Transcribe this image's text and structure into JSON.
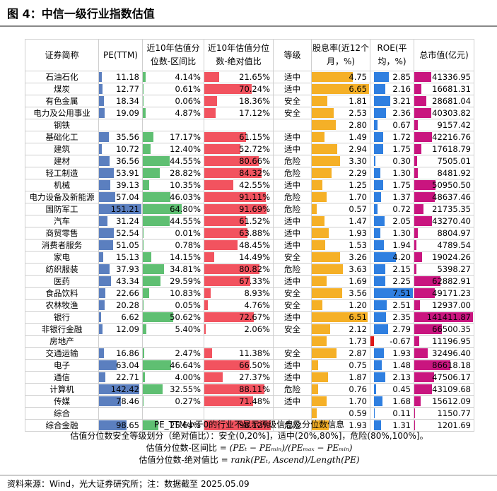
{
  "title": "图 4：中信一级行业指数估值",
  "headers": {
    "name": "证券简称",
    "pe": "PE(TTM)",
    "pct_range": "近10年估值分位数-区间比",
    "pct_abs": "近10年估值分位数-绝对值比",
    "level": "等级",
    "div": "股息率(近12个月，%)",
    "roe": "ROE(平均，%)",
    "mcap": "总市值(亿元)"
  },
  "colors": {
    "pe_bar": "#5b7fbf",
    "pct_range_bar": "#5fbf72",
    "pct_abs_bar": "#f2535f",
    "div_bar": "#f5b027",
    "roe_bar_pos": "#2f7fe0",
    "roe_bar_neg": "#e01818",
    "mcap_bar": "#c9157f"
  },
  "scales": {
    "pe_max": 151.21,
    "pct_max": 100,
    "div_max": 6.65,
    "roe_max": 7.51,
    "roe_min": -0.67,
    "mcap_max": 141411.87
  },
  "rows": [
    {
      "name": "石油石化",
      "pe": "11.18",
      "pct_range": "4.14%",
      "pct_abs": "21.65%",
      "level": "适中",
      "div": "4.75",
      "roe": "2.85",
      "mcap": "41336.95"
    },
    {
      "name": "煤炭",
      "pe": "12.77",
      "pct_range": "0.61%",
      "pct_abs": "70.24%",
      "level": "适中",
      "div": "6.65",
      "roe": "2.16",
      "mcap": "16681.31"
    },
    {
      "name": "有色金属",
      "pe": "18.34",
      "pct_range": "0.06%",
      "pct_abs": "18.36%",
      "level": "安全",
      "div": "1.81",
      "roe": "3.21",
      "mcap": "28681.04"
    },
    {
      "name": "电力及公用事业",
      "pe": "19.09",
      "pct_range": "4.87%",
      "pct_abs": "17.12%",
      "level": "安全",
      "div": "2.53",
      "roe": "2.36",
      "mcap": "40303.82"
    },
    {
      "name": "钢铁",
      "pe": "",
      "pct_range": "",
      "pct_abs": "",
      "level": "",
      "div": "2.80",
      "roe": "0.67",
      "mcap": "9157.42"
    },
    {
      "name": "基础化工",
      "pe": "35.56",
      "pct_range": "17.17%",
      "pct_abs": "61.15%",
      "level": "适中",
      "div": "1.49",
      "roe": "1.72",
      "mcap": "42216.76"
    },
    {
      "name": "建筑",
      "pe": "10.72",
      "pct_range": "12.40%",
      "pct_abs": "52.72%",
      "level": "适中",
      "div": "2.94",
      "roe": "1.75",
      "mcap": "17618.79"
    },
    {
      "name": "建材",
      "pe": "36.56",
      "pct_range": "44.55%",
      "pct_abs": "80.66%",
      "level": "危险",
      "div": "3.30",
      "roe": "0.30",
      "mcap": "7505.01"
    },
    {
      "name": "轻工制造",
      "pe": "53.91",
      "pct_range": "28.82%",
      "pct_abs": "84.32%",
      "level": "危险",
      "div": "2.29",
      "roe": "1.30",
      "mcap": "8481.92"
    },
    {
      "name": "机械",
      "pe": "39.13",
      "pct_range": "10.35%",
      "pct_abs": "42.55%",
      "level": "适中",
      "div": "1.25",
      "roe": "1.75",
      "mcap": "50950.50"
    },
    {
      "name": "电力设备及新能源",
      "pe": "57.04",
      "pct_range": "46.03%",
      "pct_abs": "91.11%",
      "level": "危险",
      "div": "1.70",
      "roe": "1.37",
      "mcap": "48637.46"
    },
    {
      "name": "国防军工",
      "pe": "151.21",
      "pct_range": "64.80%",
      "pct_abs": "91.69%",
      "level": "危险",
      "div": "0.57",
      "roe": "0.72",
      "mcap": "21735.35"
    },
    {
      "name": "汽车",
      "pe": "31.24",
      "pct_range": "44.55%",
      "pct_abs": "61.52%",
      "level": "适中",
      "div": "1.47",
      "roe": "2.05",
      "mcap": "43270.40"
    },
    {
      "name": "商贸零售",
      "pe": "52.54",
      "pct_range": "0.01%",
      "pct_abs": "63.88%",
      "level": "适中",
      "div": "1.93",
      "roe": "1.30",
      "mcap": "8804.97"
    },
    {
      "name": "消费者服务",
      "pe": "51.05",
      "pct_range": "0.78%",
      "pct_abs": "48.45%",
      "level": "适中",
      "div": "1.53",
      "roe": "1.94",
      "mcap": "4789.54"
    },
    {
      "name": "家电",
      "pe": "15.13",
      "pct_range": "14.15%",
      "pct_abs": "14.49%",
      "level": "安全",
      "div": "3.26",
      "roe": "4.20",
      "mcap": "19024.26"
    },
    {
      "name": "纺织服装",
      "pe": "37.93",
      "pct_range": "34.81%",
      "pct_abs": "80.82%",
      "level": "危险",
      "div": "3.63",
      "roe": "2.15",
      "mcap": "5398.27"
    },
    {
      "name": "医药",
      "pe": "43.34",
      "pct_range": "29.59%",
      "pct_abs": "67.33%",
      "level": "适中",
      "div": "1.69",
      "roe": "2.25",
      "mcap": "62882.91"
    },
    {
      "name": "食品饮料",
      "pe": "22.66",
      "pct_range": "10.83%",
      "pct_abs": "8.93%",
      "level": "安全",
      "div": "3.56",
      "roe": "7.51",
      "mcap": "49171.23"
    },
    {
      "name": "农林牧渔",
      "pe": "20.28",
      "pct_range": "0.05%",
      "pct_abs": "4.76%",
      "level": "安全",
      "div": "1.20",
      "roe": "2.51",
      "mcap": "12937.00"
    },
    {
      "name": "银行",
      "pe": "6.62",
      "pct_range": "50.62%",
      "pct_abs": "72.67%",
      "level": "适中",
      "div": "6.51",
      "roe": "2.35",
      "mcap": "141411.87"
    },
    {
      "name": "非银行金融",
      "pe": "12.09",
      "pct_range": "5.40%",
      "pct_abs": "2.06%",
      "level": "安全",
      "div": "2.12",
      "roe": "2.79",
      "mcap": "66500.35"
    },
    {
      "name": "房地产",
      "pe": "",
      "pct_range": "",
      "pct_abs": "",
      "level": "",
      "div": "1.73",
      "roe": "-0.67",
      "mcap": "11196.95"
    },
    {
      "name": "交通运输",
      "pe": "16.86",
      "pct_range": "2.47%",
      "pct_abs": "11.38%",
      "level": "安全",
      "div": "2.87",
      "roe": "1.93",
      "mcap": "32496.40"
    },
    {
      "name": "电子",
      "pe": "63.04",
      "pct_range": "46.64%",
      "pct_abs": "66.50%",
      "level": "适中",
      "div": "0.75",
      "roe": "1.48",
      "mcap": "86618.18"
    },
    {
      "name": "通信",
      "pe": "22.71",
      "pct_range": "4.00%",
      "pct_abs": "27.37%",
      "level": "适中",
      "div": "1.87",
      "roe": "2.13",
      "mcap": "47506.17"
    },
    {
      "name": "计算机",
      "pe": "142.42",
      "pct_range": "32.55%",
      "pct_abs": "88.11%",
      "level": "危险",
      "div": "0.76",
      "roe": "0.45",
      "mcap": "43109.68"
    },
    {
      "name": "传媒",
      "pe": "78.46",
      "pct_range": "0.27%",
      "pct_abs": "71.48%",
      "level": "适中",
      "div": "1.70",
      "roe": "1.68",
      "mcap": "15612.09"
    },
    {
      "name": "综合",
      "pe": "",
      "pct_range": "",
      "pct_abs": "",
      "level": "",
      "div": "0.59",
      "roe": "0.11",
      "mcap": "1150.77"
    },
    {
      "name": "综合金融",
      "pe": "98.65",
      "pct_range": "25.64%",
      "pct_abs": "98.12%",
      "level": "危险",
      "div": "1.93",
      "roe": "1.31",
      "mcap": "1201.69"
    }
  ],
  "notes": {
    "note1": "PE_TTM小于0的行业不显示评级信息及分位数信息",
    "note2": "估值分位数安全等级划分（绝对值比）：安全(0,20%]，适中(20%,80%]，危险(80%,100%]。",
    "note3_label": "估值分位数-区间比 =",
    "note3_formula": "(PEₜ − PEₘᵢₙ)/(PEₘₐₓ − PEₘᵢₙ)",
    "note4_label": "估值分位数-绝对值比 =",
    "note4_formula": "rank(PEₜ, Ascend)/Length(PE)"
  },
  "source": "资料来源：Wind，光大证券研究所；注：数据截至 2025.05.09"
}
